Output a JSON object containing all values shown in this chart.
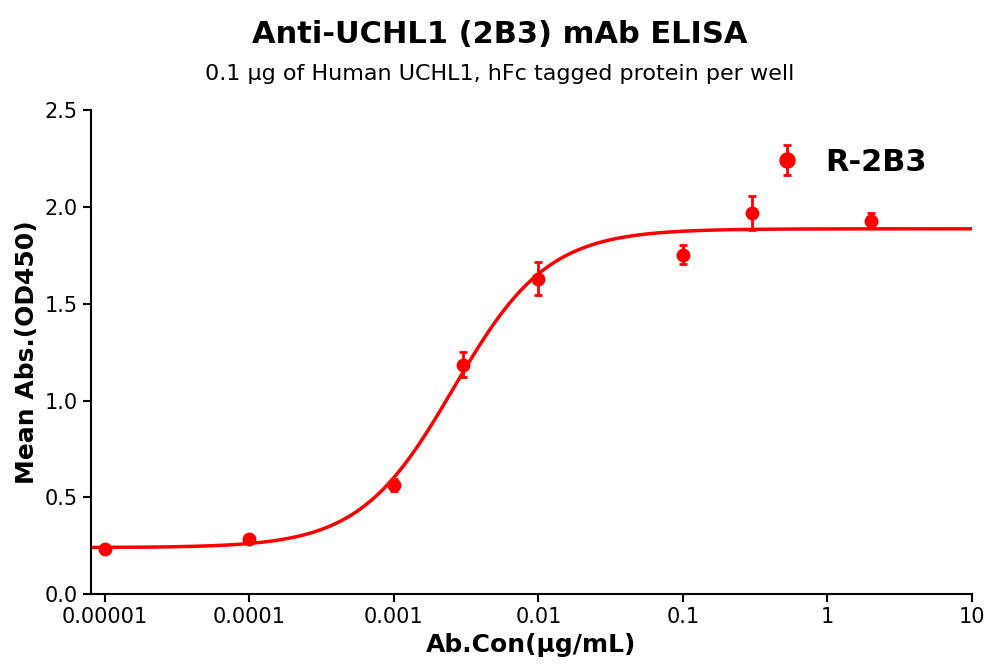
{
  "title_line1": "Anti-UCHL1 (2B3) mAb ELISA",
  "title_line2": "0.1 μg of Human UCHL1, hFc tagged protein per well",
  "xlabel": "Ab.Con(μg/mL)",
  "ylabel": "Mean Abs.(OD450)",
  "legend_label": "R-2B3",
  "line_color": "#FF0000",
  "marker_color": "#FF0000",
  "x_data": [
    1e-05,
    0.0001,
    0.001,
    0.003,
    0.01,
    0.1,
    0.3,
    2.0
  ],
  "y_data": [
    0.235,
    0.285,
    0.565,
    1.185,
    1.63,
    1.755,
    1.97,
    1.93
  ],
  "y_err": [
    0.01,
    0.012,
    0.03,
    0.065,
    0.085,
    0.05,
    0.09,
    0.04
  ],
  "ylim": [
    0.0,
    2.5
  ],
  "yticks": [
    0.0,
    0.5,
    1.0,
    1.5,
    2.0,
    2.5
  ],
  "xlim": [
    8e-06,
    10.0
  ],
  "xtick_vals": [
    1e-05,
    0.0001,
    0.001,
    0.01,
    0.1,
    1.0,
    10.0
  ],
  "xtick_labels": [
    "0.00001",
    "0.0001",
    "0.001",
    "0.01",
    "0.1",
    "1",
    "10"
  ],
  "background_color": "#ffffff",
  "title_fontsize": 22,
  "subtitle_fontsize": 16,
  "axis_label_fontsize": 18,
  "tick_fontsize": 15,
  "legend_fontsize": 22,
  "marker_size": 9,
  "line_width": 2.5,
  "fig_width": 10.0,
  "fig_height": 6.72
}
